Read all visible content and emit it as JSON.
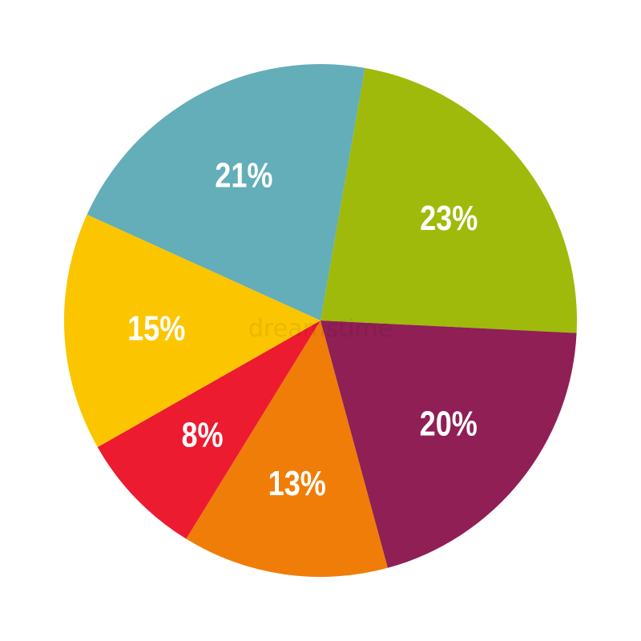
{
  "chart_data": {
    "type": "pie",
    "title": "",
    "start_angle_deg": 10,
    "direction": "clockwise",
    "slices": [
      {
        "label": "23%",
        "value": 23,
        "color": "#9fba0a"
      },
      {
        "label": "20%",
        "value": 20,
        "color": "#8f1f54"
      },
      {
        "label": "13%",
        "value": 13,
        "color": "#f07d08"
      },
      {
        "label": "8%",
        "value": 8,
        "color": "#ec1b30"
      },
      {
        "label": "15%",
        "value": 15,
        "color": "#fbc500"
      },
      {
        "label": "21%",
        "value": 21,
        "color": "#63aeb8"
      }
    ],
    "legend": "none"
  },
  "watermark": "dreamstime"
}
